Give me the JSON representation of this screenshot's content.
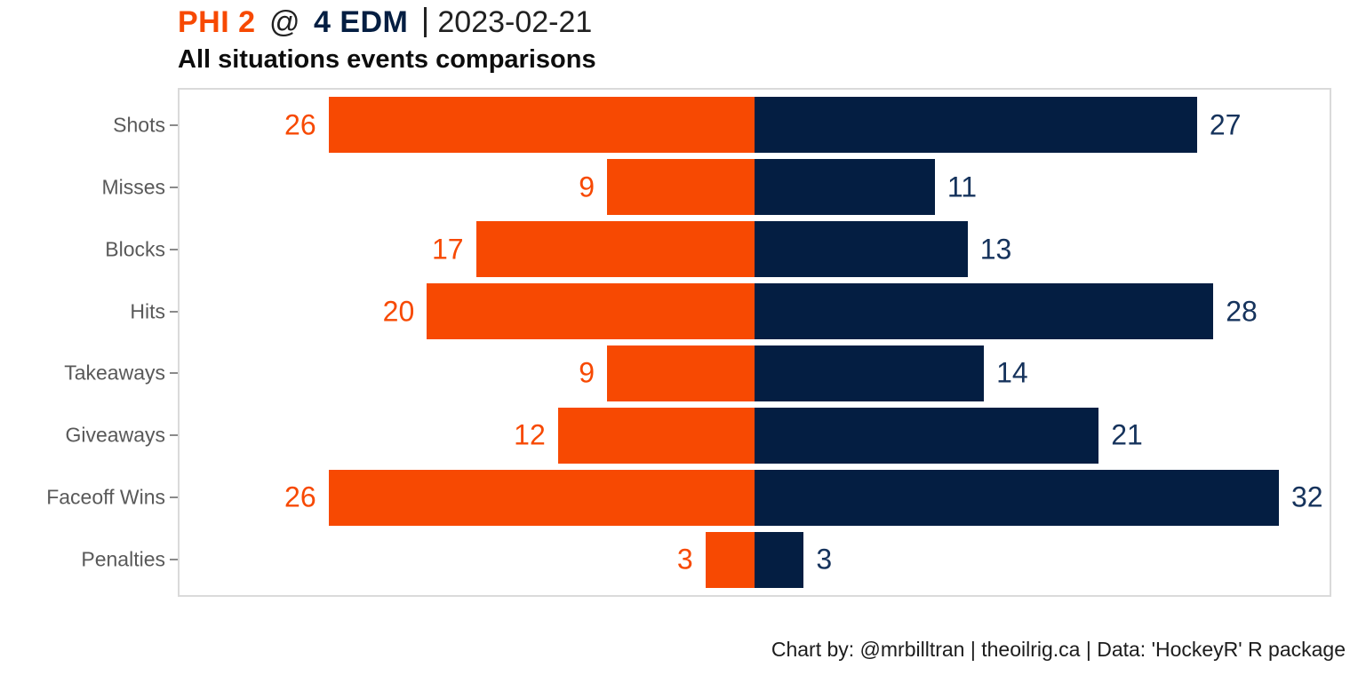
{
  "header": {
    "away": "PHI 2",
    "at": "@",
    "home": "4 EDM",
    "date": "2023-02-21",
    "subtitle": "All situations events comparisons"
  },
  "footer": {
    "credit": "Chart by: @mrbilltran | theoilrig.ca | Data: 'HockeyR' R package"
  },
  "colors": {
    "phi_orange": "#F74902",
    "edm_navy": "#041E42",
    "phi_value_label": "#F74902",
    "edm_value_label": "#16335C",
    "category_label": "#595959",
    "panel_border": "#DADADA",
    "title_text": "#212121"
  },
  "chart_data": {
    "type": "bar",
    "orientation": "horizontal-diverging",
    "title": "PHI 2 @ 4 EDM | 2023-02-21",
    "subtitle": "All situations events comparisons",
    "categories": [
      "Shots",
      "Misses",
      "Blocks",
      "Hits",
      "Takeaways",
      "Giveaways",
      "Faceoff Wins",
      "Penalties"
    ],
    "series": [
      {
        "name": "PHI",
        "side": "left",
        "color": "#F74902",
        "values": [
          26,
          9,
          17,
          20,
          9,
          12,
          26,
          3
        ]
      },
      {
        "name": "EDM",
        "side": "right",
        "color": "#041E42",
        "values": [
          27,
          11,
          13,
          28,
          14,
          21,
          32,
          3
        ]
      }
    ],
    "xlim": [
      -35.2,
      35.2
    ],
    "grid": false,
    "value_labels": true,
    "legend": "none",
    "bar_fill_fraction": 0.9
  }
}
